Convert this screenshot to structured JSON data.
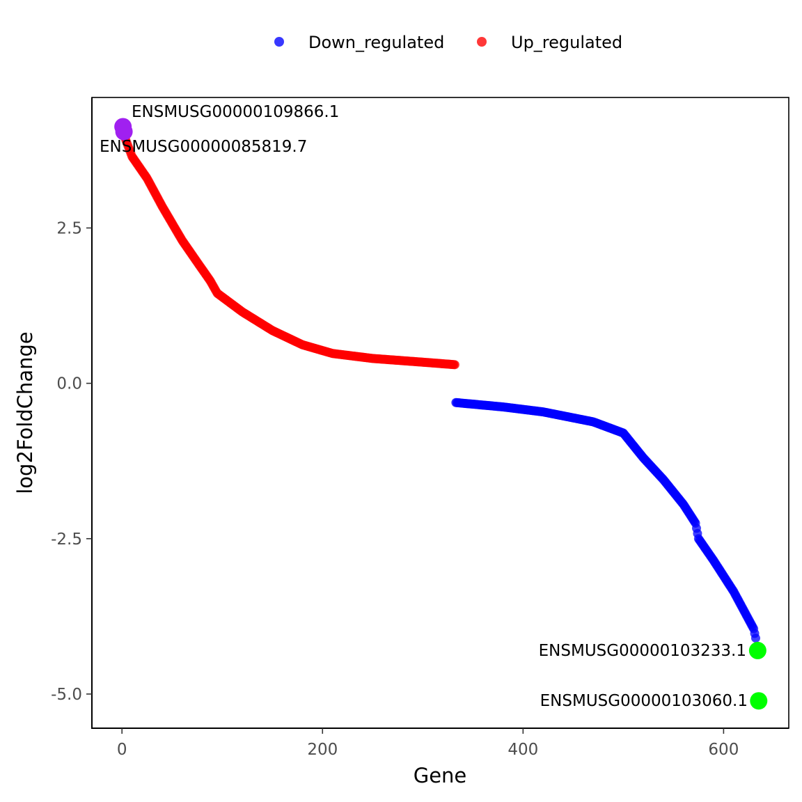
{
  "chart_data": {
    "type": "scatter",
    "title": "",
    "xlabel": "Gene",
    "ylabel": "log2FoldChange",
    "xlim": [
      -30,
      665
    ],
    "ylim": [
      -5.55,
      4.6
    ],
    "x_ticks": [
      0,
      200,
      400,
      600
    ],
    "x_tick_labels": [
      "0",
      "200",
      "400",
      "600"
    ],
    "y_ticks": [
      -5.0,
      -2.5,
      0.0,
      2.5
    ],
    "y_tick_labels": [
      "-5.0",
      "-2.5",
      "0.0",
      "2.5"
    ],
    "grid": false,
    "legend_position": "top",
    "series": [
      {
        "name": "Down_regulated",
        "color": "#0000ff",
        "x_range": [
          333,
          632
        ],
        "profile_x": [
          333,
          380,
          420,
          470,
          500,
          520,
          540,
          560,
          572,
          575,
          590,
          610,
          630,
          632
        ],
        "profile_y": [
          -0.31,
          -0.38,
          -0.46,
          -0.62,
          -0.8,
          -1.2,
          -1.55,
          -1.95,
          -2.25,
          -2.5,
          -2.85,
          -3.35,
          -3.95,
          -4.1
        ]
      },
      {
        "name": "Up_regulated",
        "color": "#ff0000",
        "x_range": [
          3,
          332
        ],
        "profile_x": [
          3,
          10,
          25,
          40,
          60,
          75,
          88,
          95,
          120,
          150,
          180,
          210,
          250,
          300,
          332
        ],
        "profile_y": [
          3.95,
          3.65,
          3.3,
          2.85,
          2.3,
          1.95,
          1.65,
          1.45,
          1.15,
          0.85,
          0.62,
          0.48,
          0.4,
          0.34,
          0.3
        ]
      }
    ],
    "highlighted_points": [
      {
        "label": "ENSMUSG00000109866.1",
        "x": 1,
        "y": 4.13,
        "color": "#a020f0"
      },
      {
        "label": "ENSMUSG00000085819.7",
        "x": 2,
        "y": 4.05,
        "color": "#a020f0"
      },
      {
        "label": "ENSMUSG00000103233.1",
        "x": 634,
        "y": -4.3,
        "color": "#00ff00"
      },
      {
        "label": "ENSMUSG00000103060.1",
        "x": 635,
        "y": -5.11,
        "color": "#00ff00"
      }
    ]
  },
  "legend": {
    "items": [
      {
        "label": "Down_regulated",
        "color": "#0000ff"
      },
      {
        "label": "Up_regulated",
        "color": "#ff0000"
      }
    ]
  }
}
